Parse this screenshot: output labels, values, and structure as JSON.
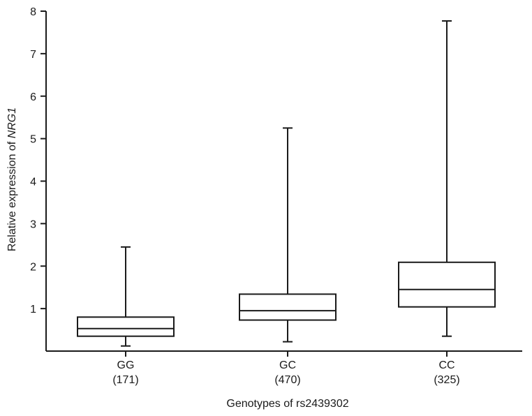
{
  "chart_data": {
    "type": "box",
    "xlabel": "Genotypes of rs2439302",
    "ylabel_prefix": "Relative expression of ",
    "ylabel_gene": "NRG1",
    "ylim": [
      0,
      8
    ],
    "yticks": [
      1,
      2,
      3,
      4,
      5,
      6,
      7,
      8
    ],
    "grid": false,
    "categories": [
      {
        "label": "GG",
        "n": "(171)",
        "min": 0.12,
        "q1": 0.35,
        "median": 0.53,
        "q3": 0.8,
        "max": 2.45
      },
      {
        "label": "GC",
        "n": "(470)",
        "min": 0.22,
        "q1": 0.73,
        "median": 0.95,
        "q3": 1.34,
        "max": 5.25
      },
      {
        "label": "CC",
        "n": "(325)",
        "min": 0.35,
        "q1": 1.04,
        "median": 1.45,
        "q3": 2.09,
        "max": 7.77
      }
    ]
  }
}
